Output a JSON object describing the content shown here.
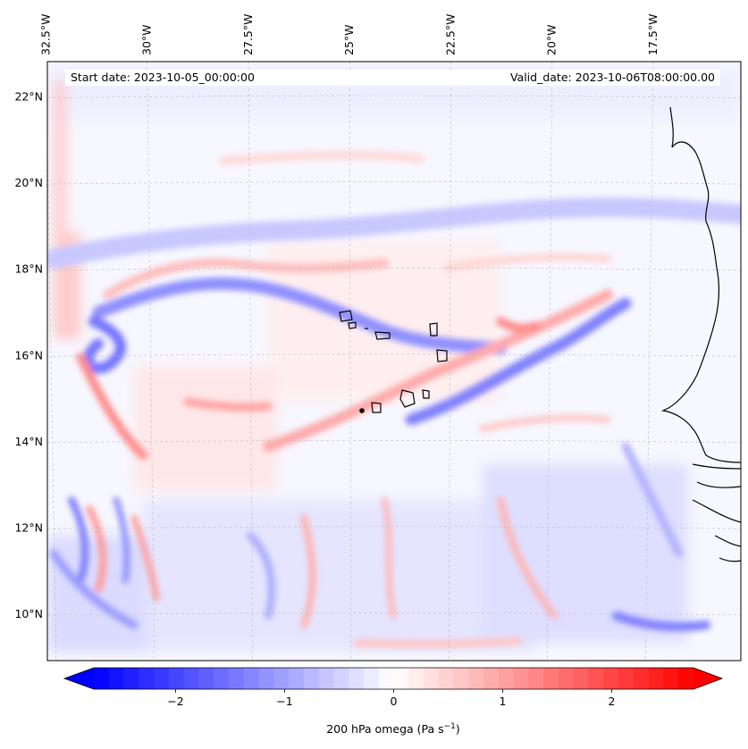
{
  "map": {
    "start_date": "Start date: 2023-10-05_00:00:00",
    "valid_date": "Valid_date: 2023-10-06T08:00:00.00",
    "lon_ticks": [
      {
        "lon": -32.5,
        "label": "32.5°W"
      },
      {
        "lon": -30.0,
        "label": "30°W"
      },
      {
        "lon": -27.5,
        "label": "27.5°W"
      },
      {
        "lon": -25.0,
        "label": "25°W"
      },
      {
        "lon": -22.5,
        "label": "22.5°W"
      },
      {
        "lon": -20.0,
        "label": "20°W"
      },
      {
        "lon": -17.5,
        "label": "17.5°W"
      }
    ],
    "lat_ticks": [
      {
        "lat": 22,
        "label": "22°N"
      },
      {
        "lat": 20,
        "label": "20°N"
      },
      {
        "lat": 18,
        "label": "18°N"
      },
      {
        "lat": 16,
        "label": "16°N"
      },
      {
        "lat": 14,
        "label": "14°N"
      },
      {
        "lat": 12,
        "label": "12°N"
      },
      {
        "lat": 10,
        "label": "10°N"
      }
    ],
    "extent": {
      "lon_min": -32.6,
      "lon_max": -15.2,
      "lat_min": 8.9,
      "lat_max": 22.8
    }
  },
  "colorbar": {
    "title_main": "200 hPa omega (Pa s",
    "title_sup": "−1",
    "title_end": ")",
    "vmin": -2.75,
    "vmax": 2.75,
    "ticks": [
      {
        "value": -2,
        "label": "−2"
      },
      {
        "value": -1,
        "label": "−1"
      },
      {
        "value": 0,
        "label": "0"
      },
      {
        "value": 1,
        "label": "1"
      },
      {
        "value": 2,
        "label": "2"
      }
    ],
    "low_color": "#0000ff",
    "mid_color": "#ffffff",
    "high_color": "#ff0000"
  }
}
